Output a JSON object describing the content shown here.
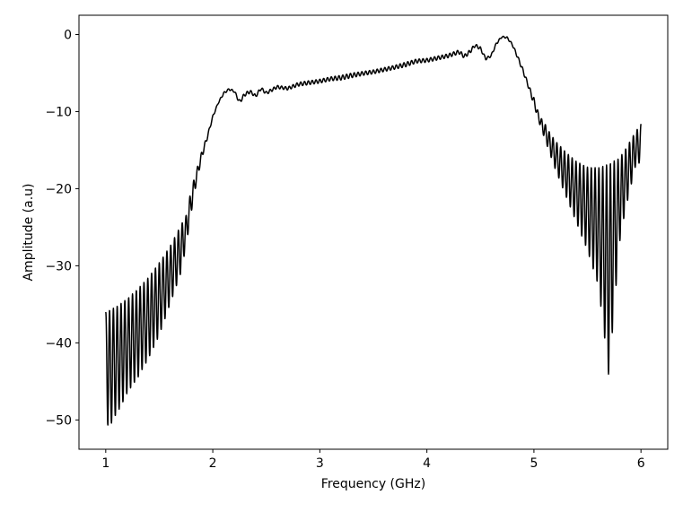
{
  "chart_data": {
    "type": "line",
    "title": "",
    "xlabel": "Frequency (GHz)",
    "ylabel": "Amplitude (a.u)",
    "xlim": [
      0.75,
      6.25
    ],
    "ylim": [
      -53.8,
      2.5
    ],
    "x_ticks": [
      1,
      2,
      3,
      4,
      5,
      6
    ],
    "y_ticks": [
      0,
      -10,
      -20,
      -30,
      -40,
      -50
    ],
    "x_tick_labels": [
      "1",
      "2",
      "3",
      "4",
      "5",
      "6"
    ],
    "y_tick_labels": [
      "0",
      "−10",
      "−20",
      "−30",
      "−40",
      "−50"
    ],
    "grid": false,
    "legend": "none",
    "line_color": "#000000",
    "series": [
      {
        "upper_envelope": [
          [
            1.0,
            -36.0
          ],
          [
            1.1,
            -35.3
          ],
          [
            1.2,
            -34.3
          ],
          [
            1.3,
            -33.0
          ],
          [
            1.4,
            -31.5
          ],
          [
            1.5,
            -29.6
          ],
          [
            1.6,
            -27.5
          ],
          [
            1.7,
            -24.8
          ],
          [
            1.75,
            -23.5
          ],
          [
            1.8,
            -20.0
          ],
          [
            1.85,
            -17.5
          ],
          [
            1.9,
            -15.0
          ],
          [
            1.95,
            -13.0
          ],
          [
            2.0,
            -10.5
          ],
          [
            2.05,
            -8.8
          ],
          [
            2.1,
            -7.5
          ],
          [
            2.15,
            -7.0
          ],
          [
            2.2,
            -7.2
          ],
          [
            2.25,
            -8.5
          ],
          [
            2.3,
            -7.5
          ],
          [
            2.35,
            -7.2
          ],
          [
            2.4,
            -7.8
          ],
          [
            2.45,
            -6.8
          ],
          [
            2.5,
            -7.4
          ],
          [
            2.6,
            -6.6
          ],
          [
            2.7,
            -6.8
          ],
          [
            2.8,
            -6.2
          ],
          [
            2.9,
            -6.0
          ],
          [
            3.0,
            -5.8
          ],
          [
            3.1,
            -5.5
          ],
          [
            3.2,
            -5.3
          ],
          [
            3.3,
            -5.0
          ],
          [
            3.4,
            -4.8
          ],
          [
            3.5,
            -4.6
          ],
          [
            3.6,
            -4.3
          ],
          [
            3.7,
            -4.0
          ],
          [
            3.8,
            -3.6
          ],
          [
            3.9,
            -3.2
          ],
          [
            4.0,
            -3.1
          ],
          [
            4.1,
            -2.8
          ],
          [
            4.2,
            -2.5
          ],
          [
            4.3,
            -2.0
          ],
          [
            4.35,
            -2.6
          ],
          [
            4.4,
            -2.0
          ],
          [
            4.45,
            -1.2
          ],
          [
            4.5,
            -1.6
          ],
          [
            4.55,
            -3.0
          ],
          [
            4.6,
            -2.6
          ],
          [
            4.65,
            -1.0
          ],
          [
            4.7,
            -0.2
          ],
          [
            4.75,
            -0.3
          ],
          [
            4.8,
            -1.2
          ],
          [
            4.85,
            -2.8
          ],
          [
            4.9,
            -4.5
          ],
          [
            4.95,
            -6.5
          ],
          [
            5.0,
            -8.2
          ],
          [
            5.05,
            -10.5
          ],
          [
            5.1,
            -11.5
          ],
          [
            5.15,
            -12.8
          ],
          [
            5.2,
            -13.8
          ],
          [
            5.3,
            -15.3
          ],
          [
            5.4,
            -16.5
          ],
          [
            5.5,
            -17.2
          ],
          [
            5.6,
            -17.3
          ],
          [
            5.7,
            -16.8
          ],
          [
            5.8,
            -16.0
          ],
          [
            5.85,
            -15.0
          ],
          [
            5.9,
            -13.8
          ],
          [
            5.95,
            -12.6
          ],
          [
            6.0,
            -11.6
          ]
        ],
        "lower_envelope": [
          [
            1.0,
            -43.0
          ],
          [
            1.02,
            -51.2
          ],
          [
            1.05,
            -50.5
          ],
          [
            1.1,
            -49.2
          ],
          [
            1.15,
            -48.0
          ],
          [
            1.2,
            -46.5
          ],
          [
            1.3,
            -44.5
          ],
          [
            1.4,
            -42.0
          ],
          [
            1.5,
            -39.0
          ],
          [
            1.6,
            -35.0
          ],
          [
            1.7,
            -31.0
          ],
          [
            1.75,
            -27.5
          ],
          [
            1.8,
            -23.0
          ],
          [
            1.85,
            -19.0
          ],
          [
            1.9,
            -16.0
          ],
          [
            1.95,
            -13.5
          ],
          [
            2.0,
            -10.8
          ],
          [
            2.05,
            -9.0
          ],
          [
            2.1,
            -7.8
          ],
          [
            2.15,
            -7.2
          ],
          [
            2.2,
            -7.5
          ],
          [
            2.25,
            -9.0
          ],
          [
            2.3,
            -8.0
          ],
          [
            2.35,
            -7.6
          ],
          [
            2.4,
            -8.2
          ],
          [
            2.45,
            -7.2
          ],
          [
            2.5,
            -7.8
          ],
          [
            2.6,
            -7.0
          ],
          [
            2.7,
            -7.2
          ],
          [
            2.8,
            -6.7
          ],
          [
            2.9,
            -6.5
          ],
          [
            3.0,
            -6.3
          ],
          [
            3.1,
            -6.0
          ],
          [
            3.2,
            -5.9
          ],
          [
            3.3,
            -5.6
          ],
          [
            3.4,
            -5.3
          ],
          [
            3.5,
            -5.1
          ],
          [
            3.6,
            -4.8
          ],
          [
            3.7,
            -4.5
          ],
          [
            3.8,
            -4.2
          ],
          [
            3.9,
            -3.7
          ],
          [
            4.0,
            -3.6
          ],
          [
            4.1,
            -3.3
          ],
          [
            4.2,
            -3.0
          ],
          [
            4.3,
            -2.5
          ],
          [
            4.35,
            -3.1
          ],
          [
            4.4,
            -2.5
          ],
          [
            4.45,
            -1.6
          ],
          [
            4.5,
            -2.0
          ],
          [
            4.55,
            -3.3
          ],
          [
            4.6,
            -2.9
          ],
          [
            4.65,
            -1.3
          ],
          [
            4.7,
            -0.4
          ],
          [
            4.75,
            -0.5
          ],
          [
            4.8,
            -1.5
          ],
          [
            4.85,
            -3.2
          ],
          [
            4.9,
            -5.0
          ],
          [
            4.95,
            -7.0
          ],
          [
            5.0,
            -9.2
          ],
          [
            5.05,
            -11.5
          ],
          [
            5.1,
            -13.5
          ],
          [
            5.15,
            -15.5
          ],
          [
            5.2,
            -17.5
          ],
          [
            5.3,
            -21.0
          ],
          [
            5.4,
            -24.5
          ],
          [
            5.5,
            -28.0
          ],
          [
            5.6,
            -32.5
          ],
          [
            5.65,
            -38.0
          ],
          [
            5.7,
            -44.5
          ],
          [
            5.73,
            -39.0
          ],
          [
            5.8,
            -27.0
          ],
          [
            5.85,
            -23.0
          ],
          [
            5.9,
            -20.0
          ],
          [
            5.95,
            -17.0
          ],
          [
            6.0,
            -16.5
          ]
        ]
      }
    ]
  }
}
